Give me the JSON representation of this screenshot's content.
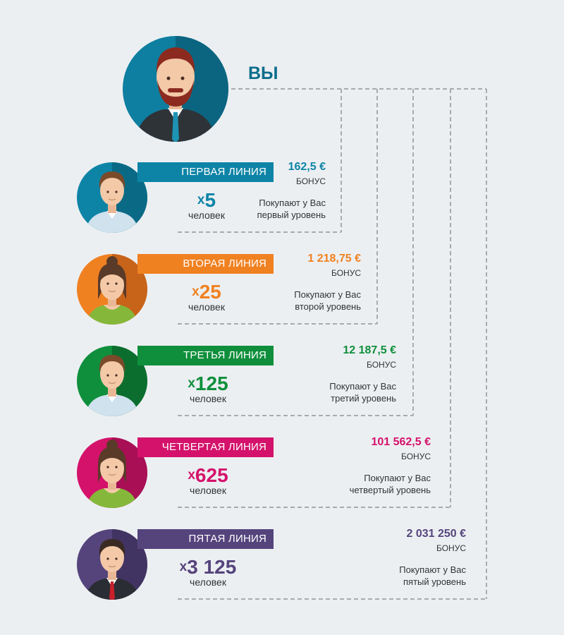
{
  "you": {
    "label": "ВЫ",
    "bg": "#0e7fa0",
    "bg_dark": "#0b6580",
    "hair": "#8c2a1f"
  },
  "lines": [
    {
      "title": "ПЕРВАЯ ЛИНИЯ",
      "color": "#0d84a6",
      "color_dark": "#0a6a86",
      "multiplier_x": "x",
      "count": "5",
      "people": "человек",
      "bonus_amount": "162,5 €",
      "bonus_label": "БОНУС",
      "desc_line1": "Покупают у Вас",
      "desc_line2": "первый уровень",
      "icon": "man-avatar-icon"
    },
    {
      "title": "ВТОРАЯ ЛИНИЯ",
      "color": "#f08121",
      "color_dark": "#c8631a",
      "multiplier_x": "x",
      "count": "25",
      "people": "человек",
      "bonus_amount": "1 218,75 €",
      "bonus_label": "БОНУС",
      "desc_line1": "Покупают у Вас",
      "desc_line2": "второй уровень",
      "icon": "woman-avatar-icon"
    },
    {
      "title": "ТРЕТЬЯ ЛИНИЯ",
      "color": "#0f8f3c",
      "color_dark": "#0b6e2e",
      "multiplier_x": "x",
      "count": "125",
      "people": "человек",
      "bonus_amount": "12 187,5 €",
      "bonus_label": "БОНУС",
      "desc_line1": "Покупают у Вас",
      "desc_line2": "третий уровень",
      "icon": "man-avatar-icon"
    },
    {
      "title": "ЧЕТВЕРТАЯ ЛИНИЯ",
      "color": "#d4126b",
      "color_dark": "#a80f55",
      "multiplier_x": "x",
      "count": "625",
      "people": "человек",
      "bonus_amount": "101 562,5 €",
      "bonus_label": "БОНУС",
      "desc_line1": "Покупают у Вас",
      "desc_line2": "четвертый уровень",
      "icon": "woman-avatar-icon"
    },
    {
      "title": "ПЯТАЯ ЛИНИЯ",
      "color": "#55447c",
      "color_dark": "#413462",
      "multiplier_x": "x",
      "count": "3 125",
      "people": "человек",
      "bonus_amount": "2 031 250 €",
      "bonus_label": "БОНУС",
      "desc_line1": "Покупают у Вас",
      "desc_line2": "пятый уровень",
      "icon": "man-suit-avatar-icon"
    }
  ]
}
